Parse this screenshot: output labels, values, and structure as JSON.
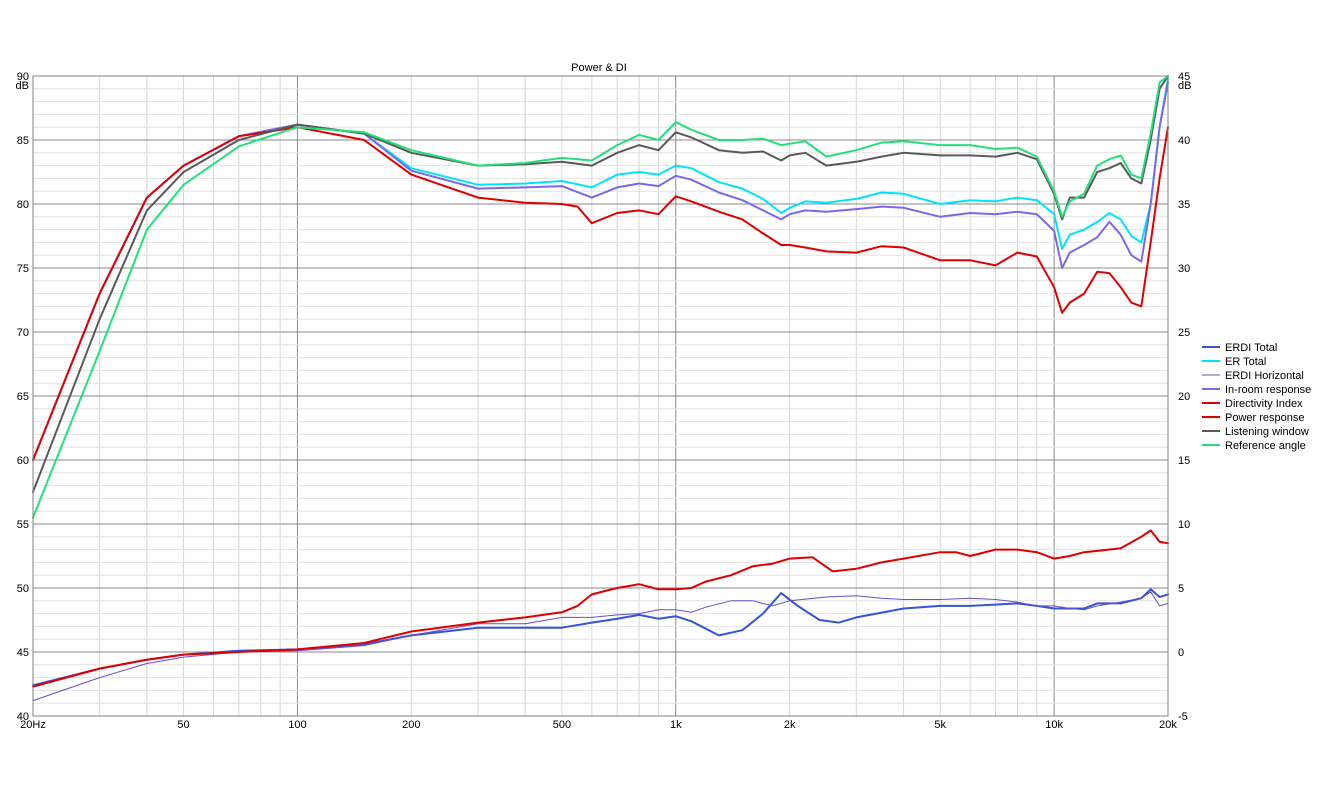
{
  "chart_data": {
    "type": "line",
    "title": "Power & DI",
    "x_axis": {
      "scale": "log",
      "range": [
        20,
        20000
      ],
      "tick_values": [
        20,
        50,
        100,
        200,
        500,
        1000,
        2000,
        5000,
        10000,
        20000
      ],
      "tick_labels": [
        "20Hz",
        "50",
        "100",
        "200",
        "500",
        "1k",
        "2k",
        "5k",
        "10k",
        "20k"
      ]
    },
    "y_left": {
      "unit": "dB",
      "range": [
        40,
        90
      ],
      "tick_labels": [
        "90",
        "85",
        "80",
        "75",
        "70",
        "65",
        "60",
        "55",
        "50",
        "45",
        "40"
      ]
    },
    "y_right": {
      "unit": "dB",
      "range": [
        -5,
        45
      ],
      "tick_labels": [
        "45",
        "40",
        "35",
        "30",
        "25",
        "20",
        "15",
        "10",
        "5",
        "0",
        "-5"
      ]
    },
    "grid": true,
    "legend_position": "right",
    "series": [
      {
        "name": "ERDI Total",
        "color": "#3355d8",
        "axis": "right",
        "x": [
          20,
          30,
          40,
          50,
          70,
          100,
          150,
          200,
          300,
          400,
          500,
          600,
          700,
          800,
          900,
          1000,
          1100,
          1300,
          1500,
          1700,
          1900,
          2100,
          2400,
          2700,
          3000,
          4000,
          5000,
          6000,
          7000,
          8000,
          9000,
          10000,
          11000,
          12000,
          13000,
          15000,
          17000,
          18000,
          19000,
          20000
        ],
        "y": [
          -2.6,
          -1.3,
          -0.6,
          -0.2,
          0.1,
          0.2,
          0.6,
          1.3,
          1.9,
          1.9,
          1.9,
          2.3,
          2.6,
          2.9,
          2.6,
          2.8,
          2.4,
          1.3,
          1.7,
          3.0,
          4.6,
          3.6,
          2.5,
          2.3,
          2.7,
          3.4,
          3.6,
          3.6,
          3.7,
          3.8,
          3.6,
          3.4,
          3.4,
          3.4,
          3.8,
          3.8,
          4.2,
          4.9,
          4.3,
          4.5
        ]
      },
      {
        "name": "ER Total",
        "color": "#00e5f5",
        "axis": "left",
        "x": [
          20,
          30,
          40,
          50,
          70,
          100,
          150,
          200,
          300,
          400,
          500,
          600,
          700,
          800,
          900,
          1000,
          1100,
          1300,
          1500,
          1700,
          1900,
          2000,
          2200,
          2500,
          3000,
          3500,
          4000,
          5000,
          6000,
          7000,
          8000,
          9000,
          10000,
          10500,
          11000,
          12000,
          13000,
          14000,
          15000,
          16000,
          17000,
          18000,
          19000,
          20000
        ],
        "y": [
          60,
          73,
          80.5,
          83,
          85.3,
          86.2,
          85.5,
          82.8,
          81.5,
          81.6,
          81.8,
          81.3,
          82.3,
          82.5,
          82.3,
          83.0,
          82.8,
          81.7,
          81.2,
          80.4,
          79.3,
          79.7,
          80.2,
          80.1,
          80.4,
          80.9,
          80.8,
          80.0,
          80.3,
          80.2,
          80.5,
          80.3,
          79.2,
          76.5,
          77.6,
          78.0,
          78.6,
          79.3,
          78.8,
          77.5,
          77.0,
          80.0,
          86.0,
          89.8
        ]
      },
      {
        "name": "ERDI Horizontal",
        "color": "#6a4cc8",
        "axis": "right",
        "x": [
          20,
          30,
          40,
          50,
          70,
          100,
          150,
          200,
          300,
          400,
          500,
          600,
          700,
          800,
          900,
          1000,
          1100,
          1200,
          1400,
          1600,
          1800,
          2000,
          2500,
          3000,
          3500,
          4000,
          5000,
          6000,
          7000,
          8000,
          9000,
          10000,
          11000,
          12000,
          13000,
          15000,
          17000,
          18000,
          19000,
          20000
        ],
        "y": [
          -3.8,
          -2.0,
          -0.9,
          -0.4,
          0.0,
          0.1,
          0.5,
          1.3,
          2.2,
          2.2,
          2.7,
          2.7,
          2.9,
          3.0,
          3.3,
          3.3,
          3.1,
          3.5,
          4.0,
          4.0,
          3.6,
          4.0,
          4.3,
          4.4,
          4.2,
          4.1,
          4.1,
          4.2,
          4.1,
          3.9,
          3.6,
          3.6,
          3.4,
          3.3,
          3.6,
          3.9,
          4.2,
          4.7,
          3.6,
          3.8
        ]
      },
      {
        "name": "In-room response",
        "color": "#7b68e8",
        "axis": "left",
        "x": [
          20,
          30,
          40,
          50,
          70,
          100,
          150,
          200,
          300,
          400,
          500,
          600,
          700,
          800,
          900,
          1000,
          1100,
          1300,
          1500,
          1700,
          1900,
          2000,
          2200,
          2500,
          3000,
          3500,
          4000,
          5000,
          6000,
          7000,
          8000,
          9000,
          10000,
          10500,
          11000,
          12000,
          13000,
          14000,
          15000,
          16000,
          17000,
          18000,
          19000,
          20000
        ],
        "y": [
          60,
          73,
          80.5,
          83,
          85.3,
          86.2,
          85.5,
          82.6,
          81.2,
          81.3,
          81.4,
          80.5,
          81.3,
          81.6,
          81.4,
          82.2,
          81.9,
          80.9,
          80.3,
          79.5,
          78.8,
          79.2,
          79.5,
          79.4,
          79.6,
          79.8,
          79.7,
          79.0,
          79.3,
          79.2,
          79.4,
          79.2,
          77.9,
          75.0,
          76.2,
          76.8,
          77.4,
          78.6,
          77.6,
          76.0,
          75.5,
          80.0,
          86.0,
          89.5
        ]
      },
      {
        "name": "Directivity Index",
        "color": "#e00000",
        "axis": "right",
        "x": [
          20,
          30,
          40,
          50,
          70,
          100,
          150,
          200,
          300,
          400,
          500,
          550,
          600,
          700,
          800,
          900,
          1000,
          1100,
          1200,
          1400,
          1600,
          1800,
          2000,
          2300,
          2600,
          3000,
          3500,
          4000,
          5000,
          5500,
          6000,
          7000,
          8000,
          9000,
          10000,
          11000,
          12000,
          13000,
          15000,
          17000,
          18000,
          19000,
          20000
        ],
        "y": [
          -2.7,
          -1.3,
          -0.6,
          -0.2,
          0.0,
          0.2,
          0.7,
          1.6,
          2.3,
          2.7,
          3.1,
          3.6,
          4.5,
          5.0,
          5.3,
          4.9,
          4.9,
          5.0,
          5.5,
          6.0,
          6.7,
          6.9,
          7.3,
          7.4,
          6.3,
          6.5,
          7.0,
          7.3,
          7.8,
          7.8,
          7.5,
          8.0,
          8.0,
          7.8,
          7.3,
          7.5,
          7.8,
          7.9,
          8.1,
          9.0,
          9.5,
          8.6,
          8.5
        ]
      },
      {
        "name": "Power response",
        "color": "#e00000",
        "axis": "left",
        "x": [
          20,
          30,
          40,
          50,
          70,
          100,
          150,
          200,
          300,
          400,
          500,
          550,
          600,
          700,
          800,
          900,
          1000,
          1100,
          1300,
          1500,
          1700,
          1900,
          2000,
          2200,
          2500,
          3000,
          3500,
          4000,
          5000,
          6000,
          7000,
          8000,
          9000,
          10000,
          10500,
          11000,
          12000,
          13000,
          14000,
          15000,
          16000,
          17000,
          18000,
          19000,
          20000
        ],
        "y": [
          60,
          73,
          80.5,
          83,
          85.3,
          86.0,
          85.0,
          82.3,
          80.5,
          80.1,
          80.0,
          79.8,
          78.5,
          79.3,
          79.5,
          79.2,
          80.6,
          80.2,
          79.4,
          78.8,
          77.7,
          76.8,
          76.8,
          76.6,
          76.3,
          76.2,
          76.7,
          76.6,
          75.6,
          75.6,
          75.2,
          76.2,
          75.9,
          73.5,
          71.5,
          72.3,
          73.0,
          74.7,
          74.6,
          73.5,
          72.3,
          72.0,
          77.0,
          82.0,
          86.0
        ]
      },
      {
        "name": "Listening window",
        "color": "#5a5a5a",
        "axis": "left",
        "x": [
          20,
          30,
          40,
          50,
          70,
          100,
          150,
          200,
          300,
          400,
          500,
          600,
          700,
          800,
          900,
          1000,
          1100,
          1300,
          1500,
          1700,
          1900,
          2000,
          2200,
          2500,
          3000,
          3500,
          4000,
          5000,
          6000,
          7000,
          8000,
          9000,
          10000,
          10500,
          11000,
          12000,
          13000,
          14000,
          15000,
          16000,
          17000,
          18000,
          19000,
          20000
        ],
        "y": [
          57.5,
          71,
          79.5,
          82.5,
          85,
          86.2,
          85.5,
          84,
          83,
          83.1,
          83.3,
          83.0,
          84.0,
          84.6,
          84.2,
          85.6,
          85.2,
          84.2,
          84.0,
          84.1,
          83.4,
          83.8,
          84.0,
          83.0,
          83.3,
          83.7,
          84.0,
          83.8,
          83.8,
          83.7,
          84.0,
          83.5,
          80.8,
          78.8,
          80.5,
          80.5,
          82.5,
          82.8,
          83.2,
          82.0,
          81.6,
          85.0,
          89.0,
          91.0
        ]
      },
      {
        "name": "Reference angle",
        "color": "#22e07a",
        "axis": "left",
        "x": [
          20,
          30,
          40,
          50,
          70,
          100,
          150,
          200,
          300,
          400,
          500,
          600,
          700,
          800,
          900,
          1000,
          1100,
          1300,
          1500,
          1700,
          1900,
          2000,
          2200,
          2500,
          3000,
          3500,
          4000,
          5000,
          6000,
          7000,
          8000,
          9000,
          10000,
          10500,
          11000,
          12000,
          13000,
          14000,
          15000,
          16000,
          17000,
          18000,
          19000,
          20000
        ],
        "y": [
          55.5,
          68.5,
          78,
          81.5,
          84.5,
          86.0,
          85.6,
          84.2,
          83.0,
          83.2,
          83.6,
          83.4,
          84.6,
          85.4,
          85.0,
          86.4,
          85.8,
          85.0,
          85.0,
          85.1,
          84.6,
          84.7,
          84.9,
          83.7,
          84.2,
          84.8,
          84.9,
          84.6,
          84.6,
          84.3,
          84.4,
          83.7,
          81.0,
          79.0,
          80.2,
          80.8,
          83.0,
          83.5,
          83.8,
          82.3,
          82.0,
          85.5,
          89.5,
          91.5
        ]
      }
    ]
  }
}
